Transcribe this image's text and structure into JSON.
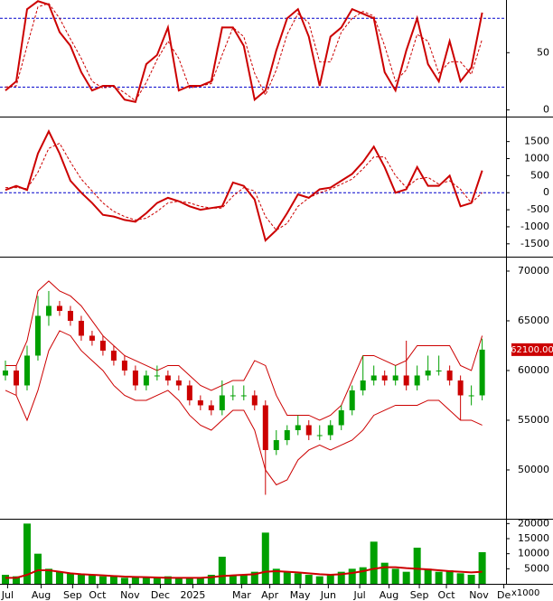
{
  "chart_data": [
    {
      "type": "line",
      "ylim": [
        -5,
        96
      ],
      "yticks": [
        0,
        50
      ],
      "levels": [
        80,
        20
      ],
      "level_color": "#0000cc",
      "series": [
        {
          "color": "#cc0000",
          "style": "solid",
          "values": [
            17,
            25,
            88,
            95,
            92,
            68,
            56,
            33,
            17,
            21,
            21,
            9,
            7,
            40,
            48,
            72,
            17,
            21,
            21,
            25,
            72,
            72,
            56,
            9,
            17,
            52,
            80,
            88,
            64,
            21,
            64,
            72,
            88,
            84,
            80,
            33,
            17,
            52,
            80,
            40,
            25,
            60,
            25,
            37,
            85
          ]
        },
        {
          "color": "#cc0000",
          "style": "dashed",
          "values": [
            20,
            21,
            56,
            90,
            93,
            80,
            62,
            45,
            25,
            19,
            21,
            15,
            8,
            24,
            44,
            60,
            45,
            19,
            21,
            23,
            48,
            72,
            64,
            32,
            13,
            35,
            66,
            84,
            76,
            42,
            42,
            68,
            80,
            86,
            82,
            56,
            25,
            35,
            66,
            60,
            32,
            42,
            42,
            31,
            62
          ]
        }
      ]
    },
    {
      "type": "line",
      "ylim": [
        -1850,
        2180
      ],
      "yticks": [
        1500,
        1000,
        500,
        0,
        -500,
        -1000,
        -1500
      ],
      "levels": [
        0
      ],
      "level_color": "#0000cc",
      "series": [
        {
          "color": "#cc0000",
          "style": "solid",
          "values": [
            80,
            200,
            80,
            1150,
            1800,
            1150,
            350,
            0,
            -300,
            -650,
            -700,
            -800,
            -850,
            -600,
            -300,
            -150,
            -250,
            -400,
            -500,
            -450,
            -400,
            300,
            200,
            -200,
            -1400,
            -1100,
            -600,
            -50,
            -150,
            100,
            150,
            350,
            550,
            900,
            1350,
            750,
            0,
            100,
            750,
            200,
            200,
            500,
            -400,
            -300,
            650
          ]
        },
        {
          "color": "#cc0000",
          "style": "dashed",
          "values": [
            150,
            150,
            120,
            600,
            1300,
            1450,
            900,
            400,
            50,
            -300,
            -550,
            -700,
            -800,
            -750,
            -550,
            -300,
            -250,
            -300,
            -400,
            -450,
            -450,
            -100,
            150,
            50,
            -700,
            -1100,
            -900,
            -400,
            -150,
            0,
            100,
            250,
            400,
            700,
            1050,
            1050,
            500,
            150,
            400,
            450,
            250,
            350,
            100,
            -300,
            0
          ]
        }
      ]
    },
    {
      "type": "candlestick",
      "ylim": [
        45180,
        71270
      ],
      "yticks": [
        70000,
        65000,
        60000,
        55000,
        50000
      ],
      "up_color": "#00a000",
      "down_color": "#cc0000",
      "band_color": "#cc0000",
      "open": [
        59500,
        60000,
        58500,
        61500,
        65500,
        66500,
        66000,
        65000,
        63500,
        63000,
        62000,
        61000,
        60000,
        58500,
        59500,
        59500,
        59000,
        58500,
        57000,
        56500,
        56000,
        57500,
        57500,
        57500,
        56500,
        52000,
        53000,
        54000,
        54500,
        53500,
        53500,
        54500,
        56000,
        58000,
        59000,
        59500,
        59000,
        59500,
        58500,
        59500,
        60000,
        60000,
        59000,
        57500,
        57500
      ],
      "high": [
        61000,
        60500,
        62500,
        67500,
        68000,
        67000,
        66500,
        65500,
        64000,
        63500,
        62500,
        61500,
        60500,
        60000,
        60500,
        60000,
        59500,
        59000,
        57500,
        57000,
        59000,
        58500,
        58500,
        58000,
        57000,
        54000,
        54500,
        55500,
        55000,
        54500,
        55000,
        56500,
        58500,
        61500,
        60500,
        60000,
        60500,
        63000,
        60500,
        61500,
        61500,
        60500,
        59500,
        58500,
        63200
      ],
      "low": [
        59000,
        57500,
        58000,
        61000,
        64500,
        65500,
        64500,
        63000,
        62500,
        61500,
        60500,
        59500,
        58000,
        58000,
        59000,
        58500,
        58000,
        56500,
        56000,
        55500,
        55500,
        57000,
        57000,
        56000,
        47500,
        51500,
        52500,
        53500,
        53000,
        53000,
        53000,
        54000,
        55500,
        57500,
        58500,
        58500,
        58500,
        58000,
        58000,
        59000,
        59500,
        58500,
        55000,
        56500,
        57000
      ],
      "close": [
        60000,
        58500,
        61500,
        65500,
        66500,
        66000,
        65000,
        63500,
        63000,
        62000,
        61000,
        60000,
        58500,
        59500,
        59500,
        59000,
        58500,
        57000,
        56500,
        56000,
        57500,
        57500,
        57500,
        56500,
        52000,
        53000,
        54000,
        54500,
        53500,
        53500,
        54500,
        56000,
        58000,
        59000,
        59500,
        59000,
        59500,
        58500,
        59500,
        60000,
        60000,
        59000,
        57500,
        57500,
        62100
      ],
      "bands": [
        {
          "values": [
            60500,
            60500,
            63000,
            68000,
            69000,
            68000,
            67500,
            66500,
            65000,
            63500,
            62500,
            61500,
            61000,
            60500,
            60000,
            60500,
            60500,
            59500,
            58500,
            58000,
            58500,
            59000,
            59000,
            61000,
            60500,
            57500,
            55500,
            55500,
            55500,
            55000,
            55500,
            56500,
            59000,
            61500,
            61500,
            61000,
            60500,
            61000,
            62500,
            62500,
            62500,
            62500,
            60500,
            60000,
            63500
          ]
        },
        {
          "values": [
            58000,
            57500,
            55000,
            58000,
            62000,
            64000,
            63500,
            62000,
            61000,
            60000,
            58500,
            57500,
            57000,
            57000,
            57500,
            58000,
            57000,
            55500,
            54500,
            54000,
            55000,
            56000,
            56000,
            54000,
            50000,
            48500,
            49000,
            51000,
            52000,
            52500,
            52000,
            52500,
            53000,
            54000,
            55500,
            56000,
            56500,
            56500,
            56500,
            57000,
            57000,
            56000,
            55000,
            55000,
            54500
          ]
        }
      ],
      "last_value_label": "62100.00",
      "last_label_color": "#cc0000"
    },
    {
      "type": "bar",
      "ylim": [
        0,
        21000
      ],
      "yticks": [
        20000,
        15000,
        10000,
        5000
      ],
      "unit_label": "x1000",
      "color": "#00a000",
      "values": [
        3000,
        2500,
        20000,
        10000,
        5000,
        4000,
        3500,
        3000,
        3000,
        2500,
        2500,
        2000,
        2500,
        2000,
        2000,
        2500,
        2000,
        2000,
        2000,
        3000,
        9000,
        3000,
        3000,
        4000,
        17000,
        5000,
        4000,
        3500,
        3000,
        2500,
        3000,
        4000,
        5000,
        5500,
        14000,
        7000,
        5000,
        4000,
        12000,
        5000,
        4000,
        4500,
        3500,
        3000,
        10500
      ],
      "ma": {
        "color": "#cc0000",
        "values": [
          2000,
          2000,
          3000,
          4500,
          4500,
          4000,
          3500,
          3200,
          3000,
          2800,
          2600,
          2400,
          2300,
          2200,
          2100,
          2000,
          2000,
          2000,
          2000,
          2200,
          2600,
          2800,
          3000,
          3200,
          4000,
          4200,
          4000,
          3800,
          3500,
          3200,
          3000,
          3200,
          3600,
          4200,
          5000,
          5500,
          5500,
          5200,
          5000,
          4800,
          4500,
          4200,
          4000,
          3800,
          4000
        ]
      },
      "xlim": [
        -0.5,
        46.2
      ],
      "xticks": [
        {
          "value": 0.2,
          "label": "Jul"
        },
        {
          "value": 3.3,
          "label": "Aug"
        },
        {
          "value": 6.2,
          "label": "Sep"
        },
        {
          "value": 8.5,
          "label": "Oct"
        },
        {
          "value": 11.5,
          "label": "Nov"
        },
        {
          "value": 14.3,
          "label": "Dec"
        },
        {
          "value": 17.3,
          "label": "2025"
        },
        {
          "value": 21.8,
          "label": "Mar"
        },
        {
          "value": 24.4,
          "label": "Apr"
        },
        {
          "value": 27.2,
          "label": "May"
        },
        {
          "value": 29.8,
          "label": "Jun"
        },
        {
          "value": 32.7,
          "label": "Jul"
        },
        {
          "value": 35.4,
          "label": "Aug"
        },
        {
          "value": 38.2,
          "label": "Sep"
        },
        {
          "value": 40.7,
          "label": "Oct"
        },
        {
          "value": 43.7,
          "label": "Nov"
        },
        {
          "value": 46.0,
          "label": "De"
        }
      ]
    }
  ]
}
